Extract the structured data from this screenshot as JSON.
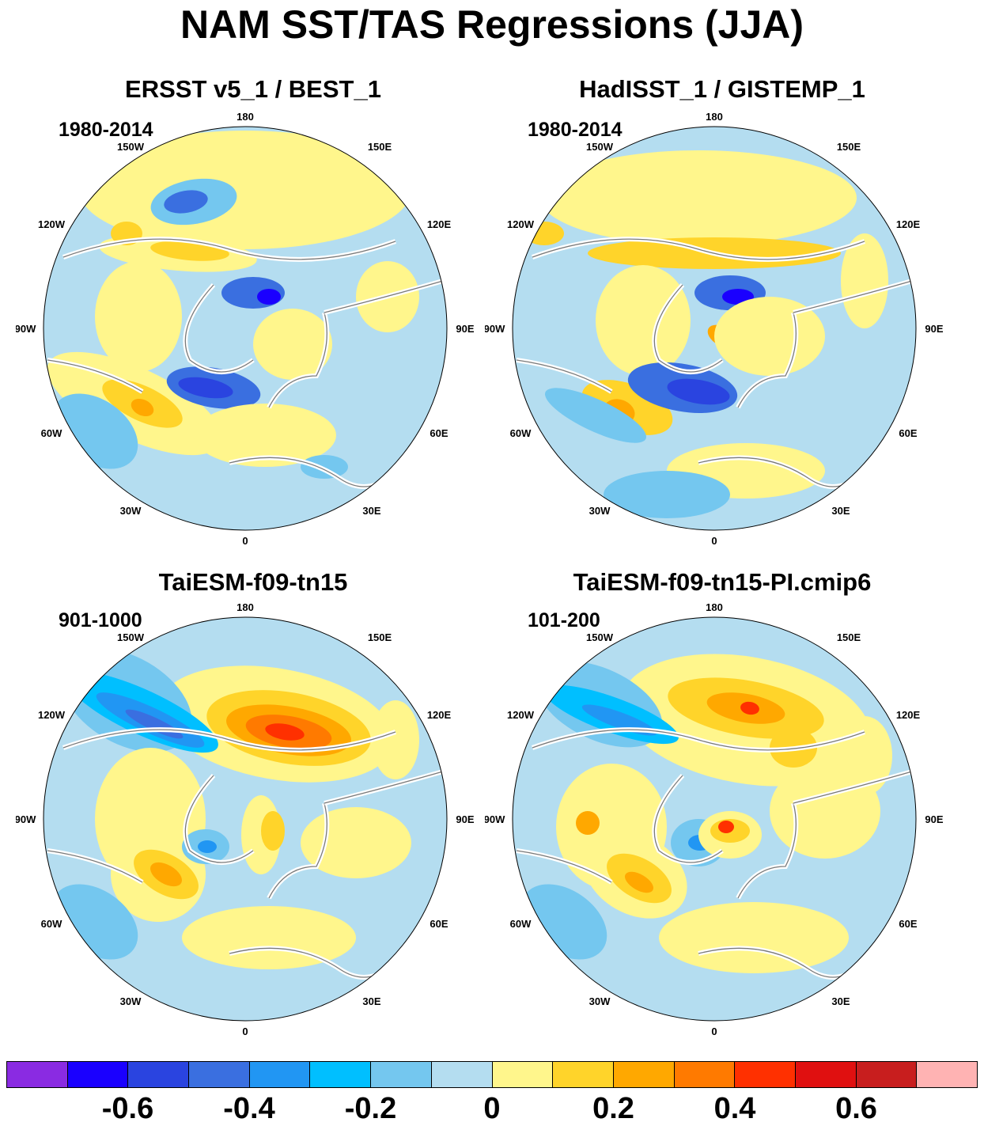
{
  "title": "NAM SST/TAS Regressions (JJA)",
  "panels": [
    {
      "title": "ERSST v5_1 / BEST_1",
      "period": "1980-2014",
      "variant": 0
    },
    {
      "title": "HadISST_1 / GISTEMP_1",
      "period": "1980-2014",
      "variant": 1
    },
    {
      "title": "TaiESM-f09-tn15",
      "period": "901-1000",
      "variant": 2
    },
    {
      "title": "TaiESM-f09-tn15-PI.cmip6",
      "period": "101-200",
      "variant": 3
    }
  ],
  "longitude_labels": [
    "180",
    "150E",
    "120E",
    "90E",
    "60E",
    "30E",
    "0",
    "30W",
    "60W",
    "90W",
    "120W",
    "150W"
  ],
  "colorbar": {
    "colors": [
      "#8a2be2",
      "#1a00ff",
      "#2a44e0",
      "#3a6fe0",
      "#2196f3",
      "#00bfff",
      "#74c7ef",
      "#b4ddf0",
      "#fff68c",
      "#ffd42a",
      "#ffa800",
      "#ff7a00",
      "#ff3000",
      "#e01010",
      "#c81e1e",
      "#ffb3b3"
    ],
    "labels": [
      "-0.6",
      "-0.4",
      "-0.2",
      "0",
      "0.2",
      "0.4",
      "0.6"
    ]
  }
}
